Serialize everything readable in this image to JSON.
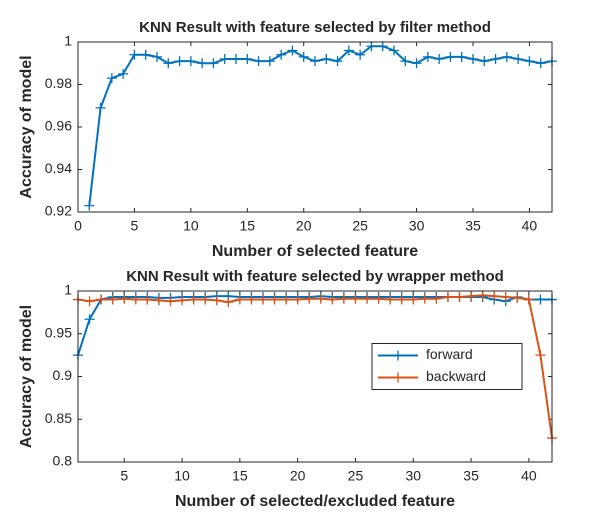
{
  "chart_data": [
    {
      "type": "line",
      "title": "KNN Result with feature selected by filter method",
      "xlabel": "Number of selected feature",
      "ylabel": "Accuracy of model",
      "xlim": [
        0,
        42
      ],
      "xticks": [
        0,
        5,
        10,
        15,
        20,
        25,
        30,
        35,
        40
      ],
      "ylim": [
        0.92,
        1
      ],
      "yticks": [
        0.92,
        0.94,
        0.96,
        0.98,
        1
      ],
      "x": [
        1,
        2,
        3,
        4,
        5,
        6,
        7,
        8,
        9,
        10,
        11,
        12,
        13,
        14,
        15,
        16,
        17,
        18,
        19,
        20,
        21,
        22,
        23,
        24,
        25,
        26,
        27,
        28,
        29,
        30,
        31,
        32,
        33,
        34,
        35,
        36,
        37,
        38,
        39,
        40,
        41,
        42
      ],
      "series": [
        {
          "color": "#0072BD",
          "values": [
            0.923,
            0.969,
            0.983,
            0.985,
            0.994,
            0.994,
            0.993,
            0.99,
            0.991,
            0.991,
            0.99,
            0.99,
            0.992,
            0.992,
            0.992,
            0.991,
            0.991,
            0.994,
            0.996,
            0.993,
            0.991,
            0.992,
            0.991,
            0.996,
            0.994,
            0.998,
            0.998,
            0.996,
            0.991,
            0.99,
            0.993,
            0.992,
            0.993,
            0.993,
            0.992,
            0.991,
            0.992,
            0.993,
            0.992,
            0.991,
            0.99,
            0.991
          ]
        }
      ]
    },
    {
      "type": "line",
      "title": "KNN Result with feature selected by wrapper method",
      "xlabel": "Number of selected/excluded feature",
      "ylabel": "Accuracy of model",
      "xlim": [
        1,
        42
      ],
      "xticks": [
        5,
        10,
        15,
        20,
        25,
        30,
        35,
        40
      ],
      "ylim": [
        0.8,
        1
      ],
      "yticks": [
        0.8,
        0.85,
        0.9,
        0.95,
        1
      ],
      "legend": "east",
      "x": [
        1,
        2,
        3,
        4,
        5,
        6,
        7,
        8,
        9,
        10,
        11,
        12,
        13,
        14,
        15,
        16,
        17,
        18,
        19,
        20,
        21,
        22,
        23,
        24,
        25,
        26,
        27,
        28,
        29,
        30,
        31,
        32,
        33,
        34,
        35,
        36,
        37,
        38,
        39,
        40,
        41,
        42
      ],
      "series": [
        {
          "name": "forward",
          "color": "#0072BD",
          "values": [
            0.925,
            0.967,
            0.99,
            0.993,
            0.993,
            0.993,
            0.993,
            0.992,
            0.992,
            0.993,
            0.993,
            0.993,
            0.994,
            0.994,
            0.993,
            0.993,
            0.993,
            0.993,
            0.993,
            0.993,
            0.993,
            0.994,
            0.993,
            0.993,
            0.993,
            0.993,
            0.993,
            0.993,
            0.993,
            0.993,
            0.993,
            0.993,
            0.993,
            0.993,
            0.993,
            0.993,
            0.99,
            0.988,
            0.993,
            0.99,
            0.99,
            0.99
          ]
        },
        {
          "name": "backward",
          "color": "#D95319",
          "values": [
            0.99,
            0.988,
            0.99,
            0.99,
            0.991,
            0.99,
            0.99,
            0.989,
            0.988,
            0.989,
            0.99,
            0.99,
            0.989,
            0.987,
            0.99,
            0.99,
            0.99,
            0.99,
            0.99,
            0.99,
            0.991,
            0.991,
            0.99,
            0.991,
            0.991,
            0.991,
            0.991,
            0.99,
            0.99,
            0.99,
            0.991,
            0.991,
            0.993,
            0.993,
            0.994,
            0.995,
            0.994,
            0.993,
            0.992,
            0.99,
            0.925,
            0.828
          ]
        }
      ]
    }
  ]
}
